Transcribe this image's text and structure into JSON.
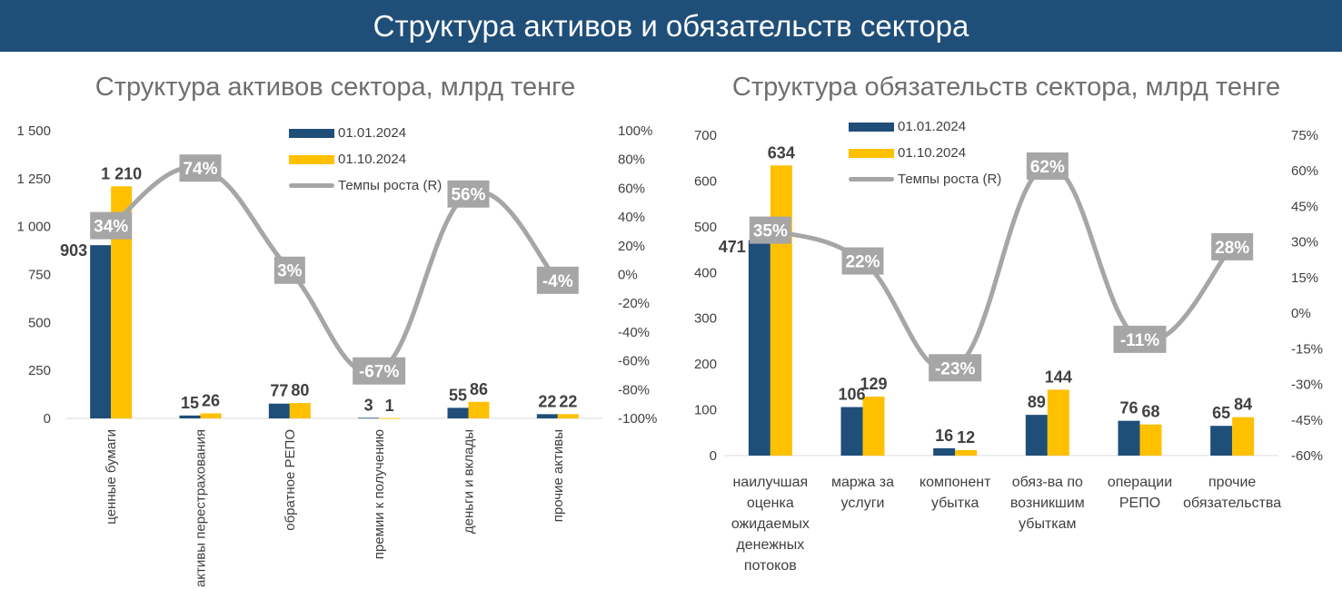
{
  "header": {
    "title": "Структура активов и обязательств сектора"
  },
  "colors": {
    "banner": "#1f4e79",
    "series1": "#1f4e79",
    "series2": "#ffc000",
    "growth": "#a6a6a6"
  },
  "chart_data": [
    {
      "type": "bar",
      "title": "Структура активов сектора, млрд тенге",
      "categories": [
        "ценные бумаги",
        "активы перестрахования",
        "обратное РЕПО",
        "премии к получению",
        "деньги и вклады",
        "прочие активы"
      ],
      "series": [
        {
          "name": "01.01.2024",
          "values": [
            903,
            15,
            77,
            3,
            55,
            22
          ],
          "labels": [
            "903",
            "15",
            "77",
            "3",
            "55",
            "22"
          ]
        },
        {
          "name": "01.10.2024",
          "values": [
            1210,
            26,
            80,
            1,
            86,
            22
          ],
          "labels": [
            "1 210",
            "26",
            "80",
            "1",
            "86",
            "22"
          ]
        }
      ],
      "line": {
        "name": "Темпы роста (R)",
        "values": [
          34,
          74,
          3,
          -67,
          56,
          -4
        ],
        "labels": [
          "34%",
          "74%",
          "3%",
          "-67%",
          "56%",
          "-4%"
        ]
      },
      "ylim": [
        0,
        1500
      ],
      "yticks": [
        "0",
        "250",
        "500",
        "750",
        "1 000",
        "1 250",
        "1 500"
      ],
      "y2lim": [
        -100,
        100
      ],
      "y2ticks": [
        "-100%",
        "-80%",
        "-60%",
        "-40%",
        "-20%",
        "0%",
        "20%",
        "40%",
        "60%",
        "80%",
        "100%"
      ],
      "legend_position": "top-center",
      "grid": false
    },
    {
      "type": "bar",
      "title": "Структура обязательств сектора, млрд тенге",
      "categories": [
        "наилучшая оценка ожидаемых денежных потоков",
        "маржа за услуги",
        "компонент убытка",
        "обяз-ва по возникшим убыткам",
        "операции РЕПО",
        "прочие обязательства"
      ],
      "series": [
        {
          "name": "01.01.2024",
          "values": [
            471,
            106,
            16,
            89,
            76,
            65
          ],
          "labels": [
            "471",
            "106",
            "16",
            "89",
            "76",
            "65"
          ]
        },
        {
          "name": "01.10.2024",
          "values": [
            634,
            129,
            12,
            144,
            68,
            84
          ],
          "labels": [
            "634",
            "129",
            "12",
            "144",
            "68",
            "84"
          ]
        }
      ],
      "line": {
        "name": "Темпы роста (R)",
        "values": [
          35,
          22,
          -23,
          62,
          -11,
          28
        ],
        "labels": [
          "35%",
          "22%",
          "-23%",
          "62%",
          "-11%",
          "28%"
        ]
      },
      "ylim": [
        0,
        700
      ],
      "yticks": [
        "0",
        "100",
        "200",
        "300",
        "400",
        "500",
        "600",
        "700"
      ],
      "y2lim": [
        -60,
        75
      ],
      "y2ticks": [
        "-60%",
        "-45%",
        "-30%",
        "-15%",
        "0%",
        "15%",
        "30%",
        "45%",
        "60%",
        "75%"
      ],
      "legend_position": "top-center",
      "grid": false
    }
  ]
}
